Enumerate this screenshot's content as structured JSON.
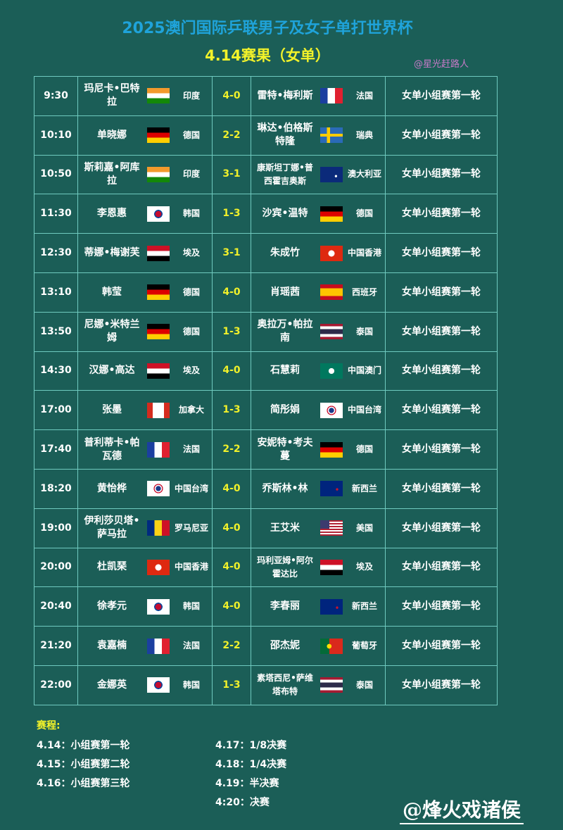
{
  "header": {
    "title": "2025澳门国际乒联男子及女子单打世界杯",
    "subtitle": "4.14赛果（女单）",
    "handle": "@星光赶路人"
  },
  "matches": [
    {
      "time": "9:30",
      "p1": "玛尼卡•巴特拉",
      "c1": "印度",
      "f1": "india",
      "score": "4-0",
      "p2": "雷特•梅利斯",
      "c2": "法国",
      "f2": "france",
      "round": "女单小组赛第一轮"
    },
    {
      "time": "10:10",
      "p1": "单晓娜",
      "c1": "德国",
      "f1": "germany",
      "score": "2-2",
      "p2": "琳达•伯格斯特隆",
      "c2": "瑞典",
      "f2": "sweden",
      "round": "女单小组赛第一轮"
    },
    {
      "time": "10:50",
      "p1": "斯莉嘉•阿库拉",
      "c1": "印度",
      "f1": "india",
      "score": "3-1",
      "p2": "康斯坦丁娜•普西霍吉奥斯",
      "c2": "澳大利亚",
      "f2": "australia",
      "round": "女单小组赛第一轮"
    },
    {
      "time": "11:30",
      "p1": "李恩惠",
      "c1": "韩国",
      "f1": "korea",
      "score": "1-3",
      "p2": "沙宾•温特",
      "c2": "德国",
      "f2": "germany",
      "round": "女单小组赛第一轮"
    },
    {
      "time": "12:30",
      "p1": "蒂娜•梅谢芙",
      "c1": "埃及",
      "f1": "egypt",
      "score": "3-1",
      "p2": "朱成竹",
      "c2": "中国香港",
      "f2": "hongkong",
      "round": "女单小组赛第一轮"
    },
    {
      "time": "13:10",
      "p1": "韩莹",
      "c1": "德国",
      "f1": "germany",
      "score": "4-0",
      "p2": "肖瑶茜",
      "c2": "西班牙",
      "f2": "spain",
      "round": "女单小组赛第一轮"
    },
    {
      "time": "13:50",
      "p1": "尼娜•米特兰姆",
      "c1": "德国",
      "f1": "germany",
      "score": "1-3",
      "p2": "奥拉万•帕拉南",
      "c2": "泰国",
      "f2": "thailand",
      "round": "女单小组赛第一轮"
    },
    {
      "time": "14:30",
      "p1": "汉娜•高达",
      "c1": "埃及",
      "f1": "egypt",
      "score": "4-0",
      "p2": "石慧莉",
      "c2": "中国澳门",
      "f2": "macau",
      "round": "女单小组赛第一轮"
    },
    {
      "time": "17:00",
      "p1": "张墨",
      "c1": "加拿大",
      "f1": "canada",
      "score": "1-3",
      "p2": "简彤娟",
      "c2": "中国台湾",
      "f2": "tpe",
      "round": "女单小组赛第一轮"
    },
    {
      "time": "17:40",
      "p1": "普利蒂卡•帕瓦德",
      "c1": "法国",
      "f1": "france",
      "score": "2-2",
      "p2": "安妮特•考夫蔓",
      "c2": "德国",
      "f2": "germany",
      "round": "女单小组赛第一轮"
    },
    {
      "time": "18:20",
      "p1": "黄怡桦",
      "c1": "中国台湾",
      "f1": "tpe",
      "score": "4-0",
      "p2": "乔斯林•林",
      "c2": "新西兰",
      "f2": "nz",
      "round": "女单小组赛第一轮"
    },
    {
      "time": "19:00",
      "p1": "伊利莎贝塔•萨马拉",
      "c1": "罗马尼亚",
      "f1": "romania",
      "score": "4-0",
      "p2": "王艾米",
      "c2": "美国",
      "f2": "usa",
      "round": "女单小组赛第一轮"
    },
    {
      "time": "20:00",
      "p1": "杜凯琹",
      "c1": "中国香港",
      "f1": "hongkong",
      "score": "4-0",
      "p2": "玛利亚姆•阿尔霍达比",
      "c2": "埃及",
      "f2": "egypt",
      "round": "女单小组赛第一轮"
    },
    {
      "time": "20:40",
      "p1": "徐孝元",
      "c1": "韩国",
      "f1": "korea",
      "score": "4-0",
      "p2": "李春丽",
      "c2": "新西兰",
      "f2": "nz",
      "round": "女单小组赛第一轮"
    },
    {
      "time": "21:20",
      "p1": "袁嘉楠",
      "c1": "法国",
      "f1": "france",
      "score": "2-2",
      "p2": "邵杰妮",
      "c2": "葡萄牙",
      "f2": "portugal",
      "round": "女单小组赛第一轮"
    },
    {
      "time": "22:00",
      "p1": "金娜英",
      "c1": "韩国",
      "f1": "korea",
      "score": "1-3",
      "p2": "素塔西尼•萨维塔布特",
      "c2": "泰国",
      "f2": "thailand",
      "round": "女单小组赛第一轮"
    }
  ],
  "schedule": {
    "heading": "赛程:",
    "left": [
      "4.14：小组赛第一轮",
      "4.15：小组赛第二轮",
      "4.16：小组赛第三轮"
    ],
    "right": [
      "4.17：1/8决赛",
      "4.18：1/4决赛",
      "4.19：半决赛",
      "4:20：决赛"
    ]
  },
  "watermark": "@烽火戏诸侯"
}
